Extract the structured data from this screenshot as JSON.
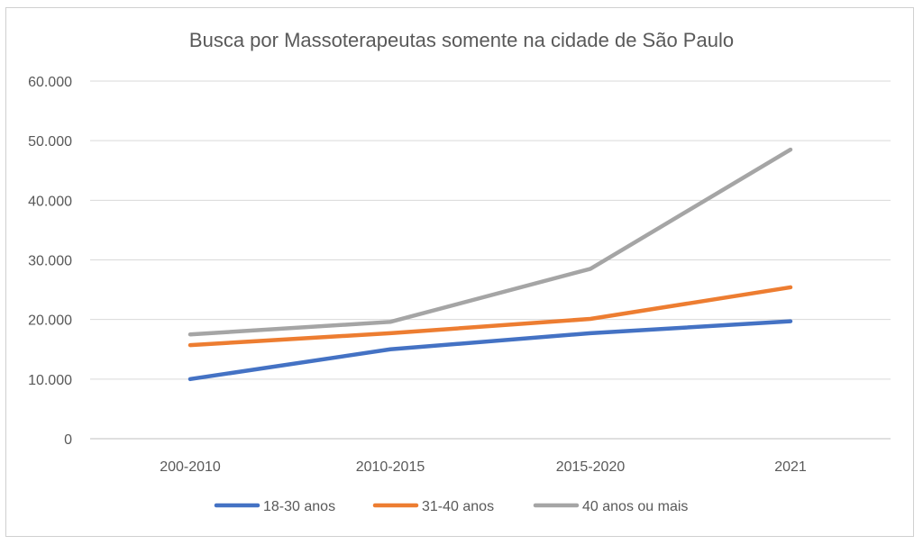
{
  "chart_data": {
    "type": "line",
    "title": "Busca por Massoterapeutas somente na cidade de São Paulo",
    "xlabel": "",
    "ylabel": "",
    "categories": [
      "200-2010",
      "2010-2015",
      "2015-2020",
      "2021"
    ],
    "y_ticks": [
      "0",
      "10.000",
      "20.000",
      "30.000",
      "40.000",
      "50.000",
      "60.000"
    ],
    "ylim": [
      0,
      60000
    ],
    "grid": "horizontal",
    "legend_position": "bottom",
    "series": [
      {
        "name": "18-30 anos",
        "color": "#4472C4",
        "values": [
          10000,
          15000,
          17700,
          19700
        ]
      },
      {
        "name": "31-40 anos",
        "color": "#ED7D31",
        "values": [
          15700,
          17700,
          20100,
          25400
        ]
      },
      {
        "name": "40 anos ou mais",
        "color": "#A5A5A5",
        "values": [
          17500,
          19600,
          28500,
          48500
        ]
      }
    ]
  }
}
